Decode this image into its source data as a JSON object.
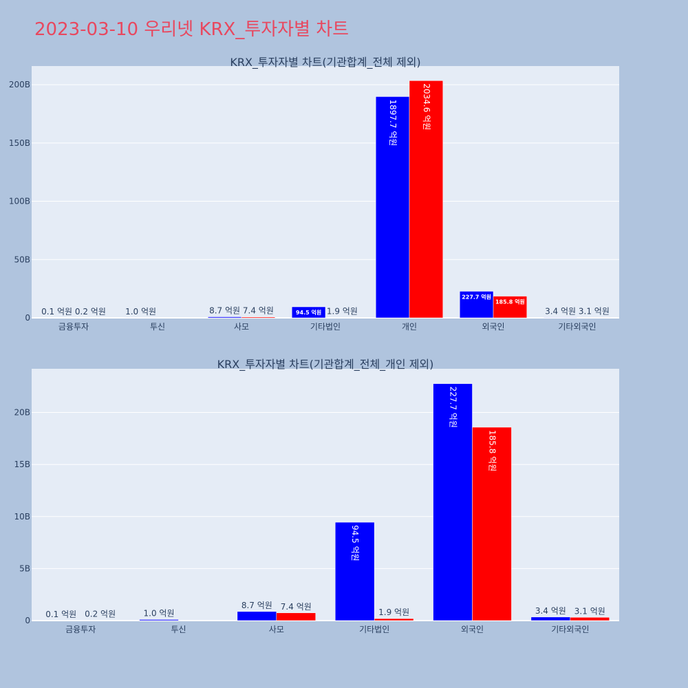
{
  "page": {
    "title": "2023-03-10 우리넷 KRX_투자자별 차트",
    "colors": {
      "background": "#b0c4de",
      "plot_bg": "#e5ecf6",
      "title": "#e8485f",
      "buy": "#0000ff",
      "sell": "#ff0000"
    }
  },
  "chart_data": [
    {
      "type": "bar",
      "title": "KRX_투자자별 차트(기관합계_전체 제외)",
      "categories": [
        "금융투자",
        "투신",
        "사모",
        "기타법인",
        "개인",
        "외국인",
        "기타외국인"
      ],
      "series": [
        {
          "color": "#0000ff",
          "values": [
            0.1,
            1.0,
            8.7,
            94.5,
            1897.7,
            227.7,
            3.4
          ],
          "labels": [
            "0.1 억원",
            "1.0 억원",
            "8.7 억원",
            "94.5 억원",
            "1897.7 억원",
            "227.7 억원",
            "3.4 억원"
          ]
        },
        {
          "color": "#ff0000",
          "values": [
            0.2,
            0,
            7.4,
            1.9,
            2034.6,
            185.8,
            3.1
          ],
          "labels": [
            "0.2 억원",
            "",
            "7.4 억원",
            "1.9 억원",
            "2034.6 억원",
            "185.8 억원",
            "3.1 억원"
          ]
        }
      ],
      "yticks": [
        0,
        500,
        1000,
        1500,
        2000
      ],
      "ytick_labels": [
        "0",
        "50B",
        "100B",
        "150B",
        "200B"
      ],
      "ylim": [
        0,
        2160
      ],
      "grid": true
    },
    {
      "type": "bar",
      "title": "KRX_투자자별 차트(기관합계_전체_개인 제외)",
      "categories": [
        "금융투자",
        "투신",
        "사모",
        "기타법인",
        "외국인",
        "기타외국인"
      ],
      "series": [
        {
          "color": "#0000ff",
          "values": [
            0.1,
            1.0,
            8.7,
            94.5,
            227.7,
            3.4
          ],
          "labels": [
            "0.1 억원",
            "1.0 억원",
            "8.7 억원",
            "94.5 억원",
            "227.7 억원",
            "3.4 억원"
          ]
        },
        {
          "color": "#ff0000",
          "values": [
            0.2,
            0,
            7.4,
            1.9,
            185.8,
            3.1
          ],
          "labels": [
            "0.2 억원",
            "",
            "7.4 억원",
            "1.9 억원",
            "185.8 억원",
            "3.1 억원"
          ]
        }
      ],
      "yticks": [
        0,
        50,
        100,
        150,
        200
      ],
      "ytick_labels": [
        "0",
        "5B",
        "10B",
        "15B",
        "20B"
      ],
      "ylim": [
        0,
        242
      ],
      "grid": true
    }
  ]
}
